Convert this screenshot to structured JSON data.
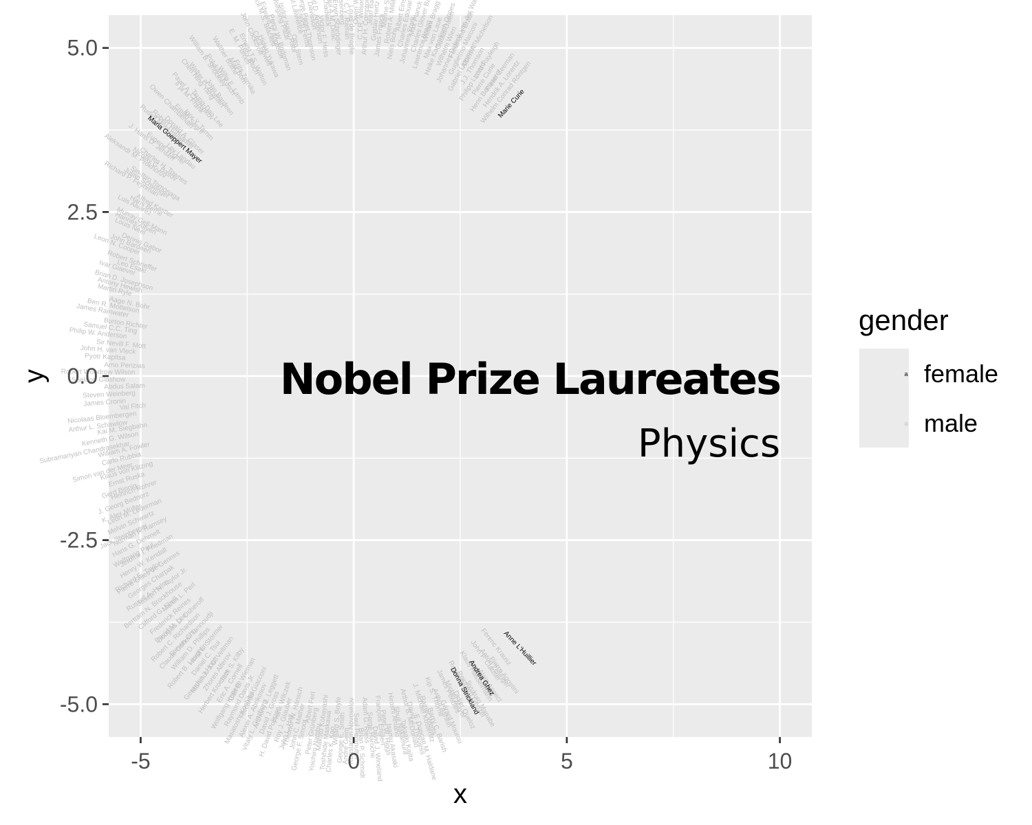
{
  "chart_data": {
    "type": "scatter",
    "title": "Nobel Prize Laureates",
    "subtitle": "Physics",
    "xlabel": "x",
    "ylabel": "y",
    "xlim": [
      -5.75,
      10.75
    ],
    "ylim": [
      -5.5,
      5.5
    ],
    "x_ticks": [
      -5,
      0,
      5,
      10
    ],
    "x_tick_labels": [
      "-5",
      "0",
      "5",
      "10"
    ],
    "y_ticks": [
      -5,
      -2.5,
      0,
      2.5,
      5
    ],
    "y_tick_labels": [
      "-5.0",
      "-2.5",
      "0.0",
      "2.5",
      "5.0"
    ],
    "grid": true,
    "legend": {
      "title": "gender",
      "position": "right",
      "entries": [
        {
          "label": "female",
          "color": "#000000"
        },
        {
          "label": "male",
          "color": "#bfbfbf"
        }
      ]
    },
    "colors": {
      "female": "#000000",
      "male": "#bfbfbf",
      "panel": "#ebebeb",
      "grid": "#ffffff"
    },
    "female_labels": [
      {
        "label": "Marie Curie",
        "x": 3.7,
        "y": 4.15
      },
      {
        "label": "Maria Goeppert Mayer",
        "x": -4.2,
        "y": 3.6
      },
      {
        "label": "Anne L'Huillier",
        "x": 3.9,
        "y": -4.15
      },
      {
        "label": "Andrea Ghez",
        "x": 3.0,
        "y": -4.6
      },
      {
        "label": "Donna Strickland",
        "x": 2.6,
        "y": -4.8
      }
    ],
    "male_labels": [
      "Wilhelm Conrad Röntgen",
      "Hendrik A. Lorentz",
      "Pieter Zeeman",
      "Henri Becquerel",
      "Pierre Curie",
      "Lord Rayleigh",
      "Philipp Lenard",
      "J.J. Thomson",
      "Albert A. Michelson",
      "Gabriel Lippmann",
      "Guglielmo Marconi",
      "Ferdinand Braun",
      "Johannes Diderik van der Waals",
      "Wilhelm Wien",
      "Gustaf Dalén",
      "Heike Kamerlingh Onnes",
      "Max von Laue",
      "William Bragg",
      "Lawrence Bragg",
      "Charles Glover Barkla",
      "Max Planck",
      "Johannes Stark",
      "Charles Edouard Guillaume",
      "Albert Einstein",
      "Niels Bohr",
      "Robert A. Millikan",
      "Manne Siegbahn",
      "James Franck",
      "Gustav Hertz",
      "Jean Baptiste Perrin",
      "Arthur H. Compton",
      "C.T.R. Wilson",
      "Owen Willans Richardson",
      "Louis de Broglie",
      "Sir C.V. Raman",
      "Werner Heisenberg",
      "Erwin Schrödinger",
      "Paul A.M. Dirac",
      "James Chadwick",
      "Victor F. Hess",
      "Carl D. Anderson",
      "Clinton Davisson",
      "George Paget Thomson",
      "Enrico Fermi",
      "Ernest Lawrence",
      "Otto Stern",
      "Isidor Isaac Rabi",
      "Wolfgang Pauli",
      "Percy W. Bridgman",
      "Edward V. Appleton",
      "Patrick M.S. Blackett",
      "Hideki Yukawa",
      "Cecil Powell",
      "John Cockcroft",
      "Ernest T.S. Walton",
      "Felix Bloch",
      "E. M. Purcell",
      "Frits Zernike",
      "Max Born",
      "Walther Bothe",
      "Willis E. Lamb",
      "Polykarp Kusch",
      "William B. Shockley",
      "John Bardeen",
      "Walter H. Brattain",
      "Chen Ning Yang",
      "Tsung-Dao Lee",
      "Pavel A. Cherenkov",
      "Il´ja M. Frank",
      "Igor Y. Tamm",
      "Emilio Segrè",
      "Owen Chamberlain",
      "Donald A. Glaser",
      "Robert Hofstadter",
      "Rudolf Mössbauer",
      "Lev Landau",
      "Eugene Wigner",
      "J. Hans D. Jensen",
      "Charles H. Townes",
      "Nicolay G. Basov",
      "Aleksandr M. Prokhorov",
      "Sin-Itiro Tomonaga",
      "Julian Schwinger",
      "Richard P. Feynman",
      "Alfred Kastler",
      "Hans Bethe",
      "Luis Alvarez",
      "Murray Gell-Mann",
      "Hannes Alfvén",
      "Louis Néel",
      "Dennis Gabor",
      "John Bardeen",
      "Leon N. Cooper",
      "Robert Schrieffer",
      "Leo Esaki",
      "Ivar Giaever",
      "Brian D. Josephson",
      "Antony Hewish",
      "Martin Ryle",
      "Aage N. Bohr",
      "Ben R. Mottelson",
      "James Rainwater",
      "Burton Richter",
      "Samuel C.C. Ting",
      "Philip W. Anderson",
      "Sir Nevill F. Mott",
      "John H. van Vleck",
      "Pyotr Kapitsa",
      "Arno Penzias",
      "Robert Woodrow Wilson",
      "Sheldon Glashow",
      "Abdus Salam",
      "Steven Weinberg",
      "James Cronin",
      "Val Fitch",
      "Nicolaas Bloembergen",
      "Arthur L. Schawlow",
      "Kai M. Siegbahn",
      "Kenneth G. Wilson",
      "Subramanyan Chandrasekhar",
      "William A. Fowler",
      "Carlo Rubbia",
      "Simon van der Meer",
      "Klaus von Klitzing",
      "Ernst Ruska",
      "Gerd Binnig",
      "Heinrich Rohrer",
      "J. Georg Bednorz",
      "K. Alex Müller",
      "Leon M. Lederman",
      "Melvin Schwartz",
      "Jack Steinberger",
      "Norman F. Ramsey",
      "Hans G. Dehmelt",
      "Wolfgang Paul",
      "Jerome I. Friedman",
      "Henry W. Kendall",
      "Richard E. Taylor",
      "Pierre-Gilles de Gennes",
      "Georges Charpak",
      "Russell A. Hulse",
      "Joseph H. Taylor Jr.",
      "Bertram N. Brockhouse",
      "Clifford G. Shull",
      "Martin L. Perl",
      "Frederick Reines",
      "David M. Lee",
      "Douglas D. Osheroff",
      "Robert C. Richardson",
      "Steven Chu",
      "Claude Cohen-Tannoudji",
      "William D. Phillips",
      "Robert B. Laughlin",
      "Horst L. Störmer",
      "Daniel C. Tsui",
      "Gerardus 't Hooft",
      "Martinus J.G. Veltman",
      "Zhores Alferov",
      "Herbert Kroemer",
      "Jack S. Kilby",
      "Eric A. Cornell",
      "Wolfgang Ketterle",
      "Carl E. Wieman",
      "Raymond Davis Jr.",
      "Masatoshi Koshiba",
      "Riccardo Giacconi",
      "Alexei A. Abrikosov",
      "Vitaly L. Ginzburg",
      "Anthony J. Leggett",
      "David J. Gross",
      "H. David Politzer",
      "Frank Wilczek",
      "Roy J. Glauber",
      "John L. Hall",
      "Theodor W. Hänsch",
      "John C. Mather",
      "George F. Smoot",
      "Albert Fert",
      "Peter Grünberg",
      "Yoichiro Nambu",
      "Makoto Kobayashi",
      "Toshihide Maskawa",
      "Charles K. Kao",
      "Willard S. Boyle",
      "George E. Smith",
      "Andre Geim",
      "Konstantin Novoselov",
      "Saul Perlmutter",
      "Brian P. Schmidt",
      "Adam G. Riess",
      "Serge Haroche",
      "David J. Wineland",
      "François Englert",
      "Peter W. Higgs",
      "Isamu Akasaki",
      "Hiroshi Amano",
      "Shuji Nakamura",
      "Takaaki Kajita",
      "Arthur B. McDonald",
      "David J. Thouless",
      "F. Duncan M. Haldane",
      "J. Michael Kosterlitz",
      "Rainer Weiss",
      "Barry C. Barish",
      "Kip S. Thorne",
      "Arthur Ashkin",
      "Gérard Mourou",
      "James Peebles",
      "Michel Mayor",
      "Didier Queloz",
      "Roger Penrose",
      "Reinhard Genzel",
      "Syukuro Manabe",
      "Klaus Hasselmann",
      "Giorgio Parisi",
      "Alain Aspect",
      "John F. Clauser",
      "Anton Zeilinger",
      "Pierre Agostini",
      "Ferenc Krausz"
    ]
  }
}
